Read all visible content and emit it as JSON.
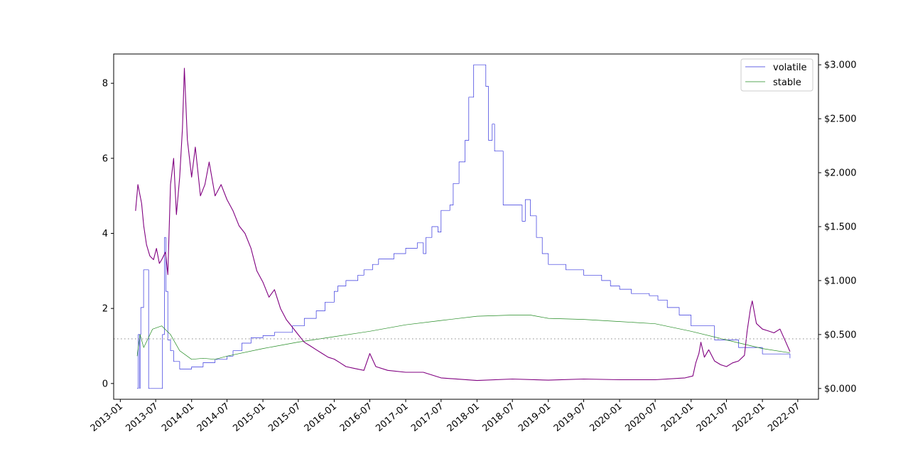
{
  "chart_data": {
    "type": "line",
    "title": "",
    "xlabel": "",
    "ylabel_left": "",
    "ylabel_right": "",
    "x_range": [
      "2012-11-28",
      "2022-10-15"
    ],
    "x_ticks": [
      "2013-01",
      "2013-07",
      "2014-01",
      "2014-07",
      "2015-01",
      "2015-07",
      "2016-01",
      "2016-07",
      "2017-01",
      "2017-07",
      "2018-01",
      "2018-07",
      "2019-01",
      "2019-07",
      "2020-01",
      "2020-07",
      "2021-01",
      "2021-07",
      "2022-01",
      "2022-07"
    ],
    "left_axis": {
      "ylim": [
        -0.42,
        8.78
      ],
      "ticks": [
        "0",
        "2",
        "4",
        "6",
        "8"
      ]
    },
    "right_axis": {
      "ylim": [
        -0.1,
        3.1
      ],
      "ticks": [
        "$0.000",
        "$0.500",
        "$1.000",
        "$1.500",
        "$2.000",
        "$2.500",
        "$3.000"
      ]
    },
    "reference_line": {
      "axis": "right",
      "value": 0.46,
      "style": "dotted",
      "color": "#aaaaaa"
    },
    "legend": {
      "position": "upper-right",
      "entries": [
        "volatile",
        "stable"
      ]
    },
    "grid": false,
    "series": [
      {
        "name": "volatile",
        "axis": "right",
        "color": "#3333dd",
        "step": true,
        "points": [
          [
            "2013-03-28",
            0.0
          ],
          [
            "2013-04-03",
            0.5
          ],
          [
            "2013-04-10",
            0.0
          ],
          [
            "2013-04-12",
            0.5
          ],
          [
            "2013-04-16",
            0.75
          ],
          [
            "2013-04-30",
            1.1
          ],
          [
            "2013-05-26",
            0.0
          ],
          [
            "2013-08-05",
            0.5
          ],
          [
            "2013-08-15",
            1.4
          ],
          [
            "2013-08-22",
            0.9
          ],
          [
            "2013-09-01",
            0.45
          ],
          [
            "2013-09-15",
            0.35
          ],
          [
            "2013-10-01",
            0.25
          ],
          [
            "2013-11-01",
            0.18
          ],
          [
            "2014-01-01",
            0.2
          ],
          [
            "2014-03-01",
            0.24
          ],
          [
            "2014-05-01",
            0.27
          ],
          [
            "2014-07-01",
            0.3
          ],
          [
            "2014-08-01",
            0.35
          ],
          [
            "2014-09-15",
            0.42
          ],
          [
            "2014-11-01",
            0.47
          ],
          [
            "2015-01-01",
            0.49
          ],
          [
            "2015-03-01",
            0.52
          ],
          [
            "2015-06-01",
            0.58
          ],
          [
            "2015-08-01",
            0.65
          ],
          [
            "2015-10-01",
            0.72
          ],
          [
            "2015-11-15",
            0.8
          ],
          [
            "2016-01-01",
            0.9
          ],
          [
            "2016-01-20",
            0.95
          ],
          [
            "2016-03-01",
            1.0
          ],
          [
            "2016-05-01",
            1.05
          ],
          [
            "2016-06-01",
            1.1
          ],
          [
            "2016-07-15",
            1.15
          ],
          [
            "2016-08-15",
            1.2
          ],
          [
            "2016-11-01",
            1.25
          ],
          [
            "2017-01-01",
            1.3
          ],
          [
            "2017-03-01",
            1.35
          ],
          [
            "2017-04-01",
            1.25
          ],
          [
            "2017-04-15",
            1.4
          ],
          [
            "2017-05-15",
            1.5
          ],
          [
            "2017-06-15",
            1.45
          ],
          [
            "2017-07-01",
            1.65
          ],
          [
            "2017-08-15",
            1.7
          ],
          [
            "2017-09-01",
            1.9
          ],
          [
            "2017-10-01",
            2.1
          ],
          [
            "2017-11-01",
            2.3
          ],
          [
            "2017-11-20",
            2.7
          ],
          [
            "2017-12-15",
            3.0
          ],
          [
            "2018-02-15",
            2.8
          ],
          [
            "2018-03-01",
            2.3
          ],
          [
            "2018-03-20",
            2.45
          ],
          [
            "2018-04-01",
            2.2
          ],
          [
            "2018-05-15",
            1.7
          ],
          [
            "2018-06-20",
            1.7
          ],
          [
            "2018-08-20",
            1.55
          ],
          [
            "2018-09-05",
            1.75
          ],
          [
            "2018-10-01",
            1.6
          ],
          [
            "2018-11-01",
            1.4
          ],
          [
            "2018-12-01",
            1.25
          ],
          [
            "2019-01-01",
            1.15
          ],
          [
            "2019-04-01",
            1.1
          ],
          [
            "2019-07-01",
            1.05
          ],
          [
            "2019-10-01",
            1.0
          ],
          [
            "2019-11-15",
            0.95
          ],
          [
            "2020-01-01",
            0.92
          ],
          [
            "2020-03-01",
            0.88
          ],
          [
            "2020-06-01",
            0.86
          ],
          [
            "2020-07-15",
            0.82
          ],
          [
            "2020-09-01",
            0.75
          ],
          [
            "2020-11-01",
            0.68
          ],
          [
            "2021-01-01",
            0.58
          ],
          [
            "2021-05-01",
            0.45
          ],
          [
            "2021-09-01",
            0.38
          ],
          [
            "2022-01-01",
            0.32
          ],
          [
            "2022-05-22",
            0.28
          ]
        ]
      },
      {
        "name": "stable",
        "axis": "right",
        "color": "#228b22",
        "step": false,
        "points": [
          [
            "2013-03-28",
            0.3
          ],
          [
            "2013-04-12",
            0.5
          ],
          [
            "2013-05-01",
            0.38
          ],
          [
            "2013-06-15",
            0.55
          ],
          [
            "2013-08-01",
            0.58
          ],
          [
            "2013-09-15",
            0.5
          ],
          [
            "2013-11-01",
            0.35
          ],
          [
            "2014-01-01",
            0.27
          ],
          [
            "2014-03-01",
            0.28
          ],
          [
            "2014-05-01",
            0.27
          ],
          [
            "2014-07-01",
            0.3
          ],
          [
            "2015-01-01",
            0.37
          ],
          [
            "2015-07-01",
            0.43
          ],
          [
            "2016-01-01",
            0.48
          ],
          [
            "2016-07-01",
            0.53
          ],
          [
            "2017-01-01",
            0.59
          ],
          [
            "2017-07-01",
            0.63
          ],
          [
            "2018-01-01",
            0.67
          ],
          [
            "2018-07-01",
            0.68
          ],
          [
            "2018-10-01",
            0.68
          ],
          [
            "2019-01-01",
            0.65
          ],
          [
            "2019-07-01",
            0.64
          ],
          [
            "2020-01-01",
            0.62
          ],
          [
            "2020-07-01",
            0.6
          ],
          [
            "2021-01-01",
            0.53
          ],
          [
            "2021-07-01",
            0.45
          ],
          [
            "2022-01-01",
            0.37
          ],
          [
            "2022-05-22",
            0.33
          ]
        ]
      },
      {
        "name": "",
        "axis": "left",
        "color": "#800080",
        "step": false,
        "points": [
          [
            "2013-03-20",
            4.6
          ],
          [
            "2013-04-01",
            5.3
          ],
          [
            "2013-04-20",
            4.8
          ],
          [
            "2013-05-01",
            4.2
          ],
          [
            "2013-05-15",
            3.7
          ],
          [
            "2013-06-01",
            3.4
          ],
          [
            "2013-06-20",
            3.3
          ],
          [
            "2013-07-05",
            3.6
          ],
          [
            "2013-07-20",
            3.2
          ],
          [
            "2013-08-01",
            3.3
          ],
          [
            "2013-08-20",
            3.5
          ],
          [
            "2013-09-01",
            2.9
          ],
          [
            "2013-09-15",
            5.3
          ],
          [
            "2013-10-01",
            6.0
          ],
          [
            "2013-10-15",
            4.5
          ],
          [
            "2013-11-01",
            5.5
          ],
          [
            "2013-11-15",
            6.8
          ],
          [
            "2013-11-25",
            8.4
          ],
          [
            "2013-12-10",
            6.5
          ],
          [
            "2014-01-01",
            5.5
          ],
          [
            "2014-01-20",
            6.3
          ],
          [
            "2014-02-15",
            5.0
          ],
          [
            "2014-03-10",
            5.3
          ],
          [
            "2014-04-01",
            5.9
          ],
          [
            "2014-05-01",
            5.0
          ],
          [
            "2014-06-01",
            5.3
          ],
          [
            "2014-07-01",
            4.9
          ],
          [
            "2014-08-01",
            4.6
          ],
          [
            "2014-09-01",
            4.2
          ],
          [
            "2014-10-01",
            4.0
          ],
          [
            "2014-11-01",
            3.6
          ],
          [
            "2014-12-01",
            3.0
          ],
          [
            "2015-01-01",
            2.7
          ],
          [
            "2015-02-01",
            2.3
          ],
          [
            "2015-03-01",
            2.5
          ],
          [
            "2015-04-01",
            2.0
          ],
          [
            "2015-05-01",
            1.7
          ],
          [
            "2015-06-01",
            1.5
          ],
          [
            "2015-07-01",
            1.3
          ],
          [
            "2015-08-01",
            1.1
          ],
          [
            "2015-09-01",
            1.0
          ],
          [
            "2015-10-01",
            0.9
          ],
          [
            "2015-11-01",
            0.8
          ],
          [
            "2015-12-01",
            0.7
          ],
          [
            "2016-01-01",
            0.65
          ],
          [
            "2016-02-01",
            0.55
          ],
          [
            "2016-03-01",
            0.45
          ],
          [
            "2016-04-15",
            0.4
          ],
          [
            "2016-06-01",
            0.35
          ],
          [
            "2016-07-01",
            0.8
          ],
          [
            "2016-08-01",
            0.45
          ],
          [
            "2016-10-01",
            0.35
          ],
          [
            "2017-01-01",
            0.3
          ],
          [
            "2017-04-01",
            0.3
          ],
          [
            "2017-07-01",
            0.15
          ],
          [
            "2018-01-01",
            0.08
          ],
          [
            "2018-07-01",
            0.12
          ],
          [
            "2019-01-01",
            0.09
          ],
          [
            "2019-07-01",
            0.12
          ],
          [
            "2020-01-01",
            0.1
          ],
          [
            "2020-07-01",
            0.1
          ],
          [
            "2020-12-01",
            0.15
          ],
          [
            "2021-01-10",
            0.2
          ],
          [
            "2021-01-25",
            0.55
          ],
          [
            "2021-02-10",
            0.8
          ],
          [
            "2021-02-20",
            1.1
          ],
          [
            "2021-03-10",
            0.7
          ],
          [
            "2021-04-01",
            0.9
          ],
          [
            "2021-05-01",
            0.6
          ],
          [
            "2021-06-01",
            0.5
          ],
          [
            "2021-07-01",
            0.45
          ],
          [
            "2021-08-01",
            0.55
          ],
          [
            "2021-09-01",
            0.6
          ],
          [
            "2021-10-01",
            0.75
          ],
          [
            "2021-10-15",
            1.4
          ],
          [
            "2021-11-01",
            2.0
          ],
          [
            "2021-11-10",
            2.2
          ],
          [
            "2021-12-01",
            1.6
          ],
          [
            "2022-01-01",
            1.45
          ],
          [
            "2022-02-01",
            1.4
          ],
          [
            "2022-03-01",
            1.35
          ],
          [
            "2022-04-01",
            1.45
          ],
          [
            "2022-05-01",
            1.1
          ],
          [
            "2022-05-22",
            0.85
          ]
        ]
      }
    ]
  }
}
